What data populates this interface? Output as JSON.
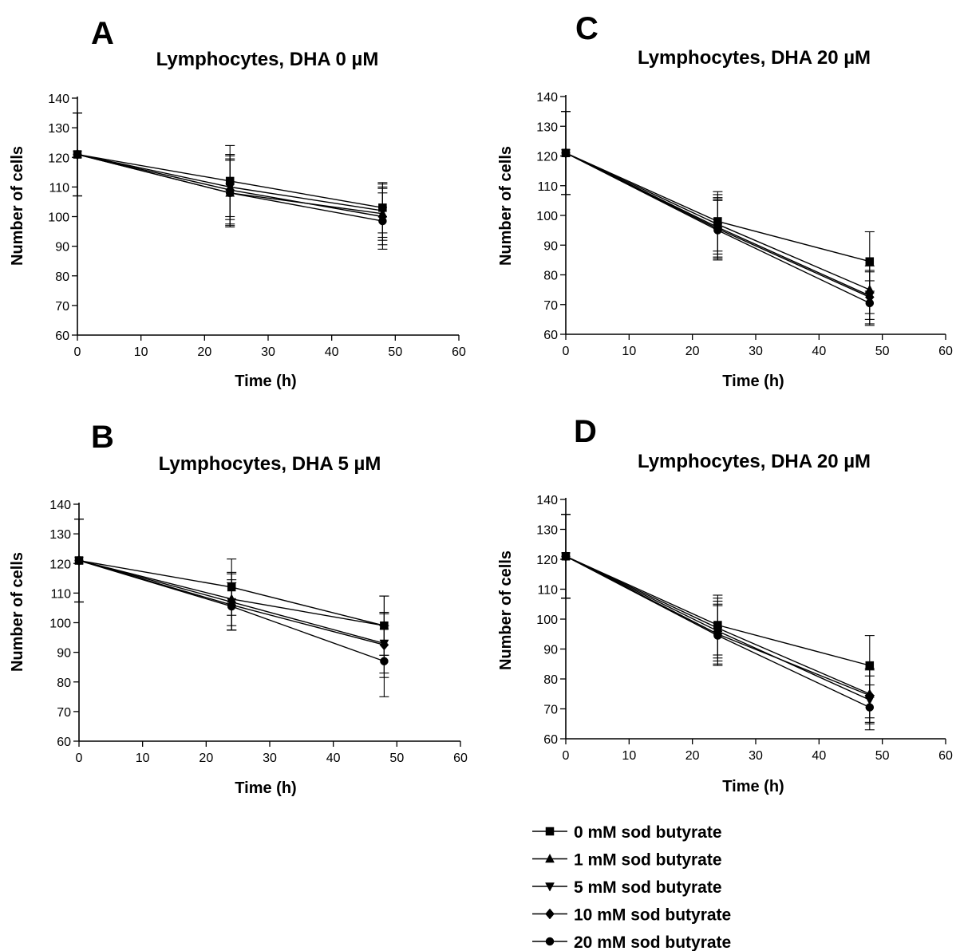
{
  "legend": {
    "entries": [
      {
        "label": "0 mM sod butyrate",
        "marker": "square"
      },
      {
        "label": "1 mM sod butyrate",
        "marker": "triangle-up"
      },
      {
        "label": "5 mM sod butyrate",
        "marker": "triangle-down"
      },
      {
        "label": "10 mM sod butyrate",
        "marker": "diamond"
      },
      {
        "label": "20 mM sod butyrate",
        "marker": "circle"
      }
    ]
  },
  "chart_data": [
    {
      "panel": "A",
      "type": "line",
      "title": "Lymphocytes, DHA 0 µM",
      "xlabel": "Time (h)",
      "ylabel": "Number of cells",
      "xlim": [
        0,
        60
      ],
      "ylim": [
        60,
        140
      ],
      "xticks": [
        0,
        10,
        20,
        30,
        40,
        50,
        60
      ],
      "yticks": [
        60,
        70,
        80,
        90,
        100,
        110,
        120,
        130,
        140
      ],
      "grid": false,
      "x": [
        0,
        24,
        48
      ],
      "series": [
        {
          "name": "0 mM sod butyrate",
          "values": [
            121,
            112,
            103
          ],
          "errors": [
            14,
            12,
            8.5
          ]
        },
        {
          "name": "1 mM sod butyrate",
          "values": [
            121,
            108,
            101
          ],
          "errors": [
            14,
            11.5,
            9
          ]
        },
        {
          "name": "5 mM sod butyrate",
          "values": [
            121,
            110,
            102
          ],
          "errors": [
            14,
            11,
            9
          ]
        },
        {
          "name": "10 mM sod butyrate",
          "values": [
            121,
            109,
            100
          ],
          "errors": [
            14,
            11.5,
            9.5
          ]
        },
        {
          "name": "20 mM sod butyrate",
          "values": [
            121,
            108,
            98.5
          ],
          "errors": [
            14,
            11,
            9.5
          ]
        }
      ]
    },
    {
      "panel": "B",
      "type": "line",
      "title": "Lymphocytes, DHA 5 µM",
      "xlabel": "Time (h)",
      "ylabel": "Number of cells",
      "xlim": [
        0,
        60
      ],
      "ylim": [
        60,
        140
      ],
      "xticks": [
        0,
        10,
        20,
        30,
        40,
        50,
        60
      ],
      "yticks": [
        60,
        70,
        80,
        90,
        100,
        110,
        120,
        130,
        140
      ],
      "grid": false,
      "x": [
        0,
        24,
        48
      ],
      "series": [
        {
          "name": "0 mM sod butyrate",
          "values": [
            121,
            112,
            99
          ],
          "errors": [
            14,
            9.5,
            10
          ]
        },
        {
          "name": "1 mM sod butyrate",
          "values": [
            121,
            108,
            99
          ],
          "errors": [
            14,
            9,
            10
          ]
        },
        {
          "name": "5 mM sod butyrate",
          "values": [
            121,
            107,
            93
          ],
          "errors": [
            14,
            9.5,
            10
          ]
        },
        {
          "name": "10 mM sod butyrate",
          "values": [
            121,
            106,
            92.5
          ],
          "errors": [
            14,
            8.5,
            11
          ]
        },
        {
          "name": "20 mM sod butyrate",
          "values": [
            121,
            105.5,
            87
          ],
          "errors": [
            14,
            8,
            12
          ]
        }
      ]
    },
    {
      "panel": "C",
      "type": "line",
      "title": "Lymphocytes, DHA 20 µM",
      "xlabel": "Time (h)",
      "ylabel": "Number of cells",
      "xlim": [
        0,
        60
      ],
      "ylim": [
        60,
        140
      ],
      "xticks": [
        0,
        10,
        20,
        30,
        40,
        50,
        60
      ],
      "yticks": [
        60,
        70,
        80,
        90,
        100,
        110,
        120,
        130,
        140
      ],
      "grid": false,
      "x": [
        0,
        24,
        48
      ],
      "series": [
        {
          "name": "0 mM sod butyrate",
          "values": [
            121,
            98,
            84.5
          ],
          "errors": [
            14,
            10,
            10
          ]
        },
        {
          "name": "1 mM sod butyrate",
          "values": [
            121,
            97,
            75
          ],
          "errors": [
            14,
            10,
            8
          ]
        },
        {
          "name": "5 mM sod butyrate",
          "values": [
            121,
            96,
            73
          ],
          "errors": [
            14,
            10,
            8
          ]
        },
        {
          "name": "10 mM sod butyrate",
          "values": [
            121,
            95.5,
            72.5
          ],
          "errors": [
            14,
            10,
            9
          ]
        },
        {
          "name": "20 mM sod butyrate",
          "values": [
            121,
            95,
            70.5
          ],
          "errors": [
            14,
            10,
            7.5
          ]
        }
      ]
    },
    {
      "panel": "D",
      "type": "line",
      "title": "Lymphocytes, DHA 20 µM",
      "xlabel": "Time (h)",
      "ylabel": "Number of cells",
      "xlim": [
        0,
        60
      ],
      "ylim": [
        60,
        140
      ],
      "xticks": [
        0,
        10,
        20,
        30,
        40,
        50,
        60
      ],
      "yticks": [
        60,
        70,
        80,
        90,
        100,
        110,
        120,
        130,
        140
      ],
      "grid": false,
      "x": [
        0,
        24,
        48
      ],
      "series": [
        {
          "name": "0 mM sod butyrate",
          "values": [
            121,
            98,
            84.5
          ],
          "errors": [
            14,
            10,
            10
          ]
        },
        {
          "name": "1 mM sod butyrate",
          "values": [
            121,
            97,
            75
          ],
          "errors": [
            14,
            10,
            8
          ]
        },
        {
          "name": "5 mM sod butyrate",
          "values": [
            121,
            96,
            73
          ],
          "errors": [
            14,
            10,
            8
          ]
        },
        {
          "name": "10 mM sod butyrate",
          "values": [
            121,
            95,
            74.5
          ],
          "errors": [
            14,
            10,
            9
          ]
        },
        {
          "name": "20 mM sod butyrate",
          "values": [
            121,
            94.5,
            70.5
          ],
          "errors": [
            14,
            10,
            7.5
          ]
        }
      ]
    }
  ]
}
